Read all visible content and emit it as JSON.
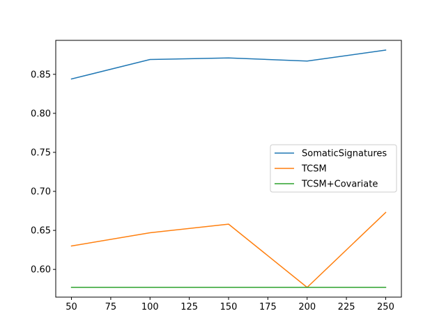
{
  "chart_data": {
    "type": "line",
    "title": "",
    "xlabel": "",
    "ylabel": "",
    "x": [
      50,
      100,
      150,
      200,
      250
    ],
    "xlim": [
      40,
      260
    ],
    "ylim": [
      0.5645,
      0.8935
    ],
    "xticks": [
      50,
      75,
      100,
      125,
      150,
      175,
      200,
      225,
      250
    ],
    "yticks": [
      0.6,
      0.65,
      0.7,
      0.75,
      0.8,
      0.85
    ],
    "xtick_labels": [
      "50",
      "75",
      "100",
      "125",
      "150",
      "175",
      "200",
      "225",
      "250"
    ],
    "ytick_labels": [
      "0.60",
      "0.65",
      "0.70",
      "0.75",
      "0.80",
      "0.85"
    ],
    "grid": false,
    "legend_position": "center-right",
    "series": [
      {
        "name": "SomaticSignatures",
        "color": "#1f77b4",
        "values": [
          0.844,
          0.869,
          0.871,
          0.867,
          0.881
        ]
      },
      {
        "name": "TCSM",
        "color": "#ff7f0e",
        "values": [
          0.63,
          0.647,
          0.658,
          0.577,
          0.673
        ]
      },
      {
        "name": "TCSM+Covariate",
        "color": "#2ca02c",
        "values": [
          0.577,
          0.577,
          0.577,
          0.577,
          0.577
        ]
      }
    ]
  }
}
